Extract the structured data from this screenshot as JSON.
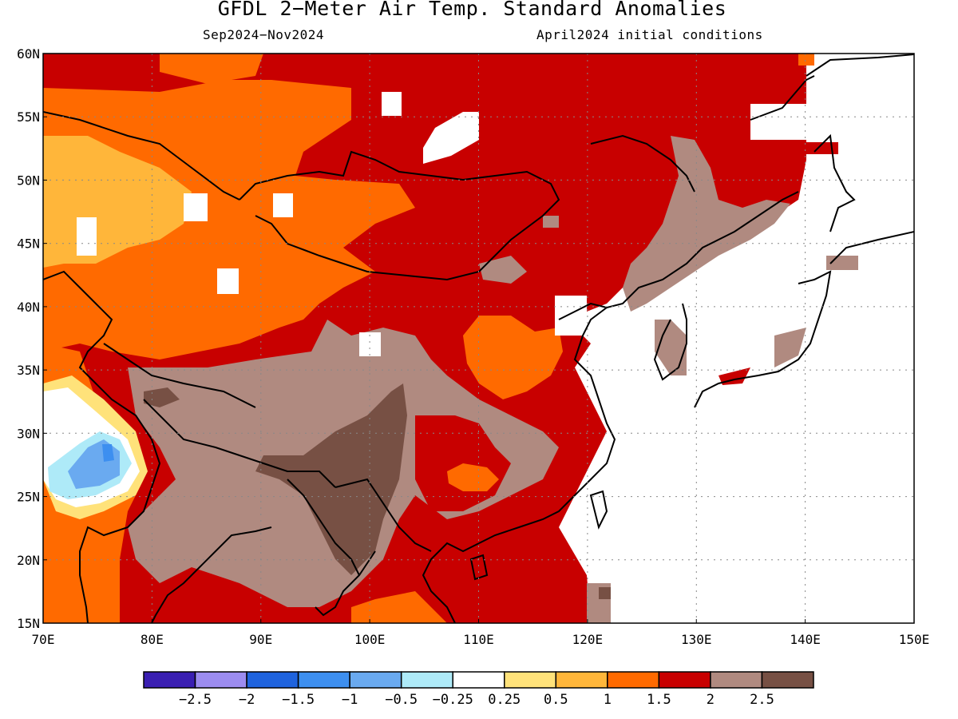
{
  "title": "GFDL 2−Meter Air Temp. Standard Anomalies",
  "subtitle_left": "Sep2024−Nov2024",
  "subtitle_right": "April2024 initial conditions",
  "map": {
    "lon_range": [
      70,
      150
    ],
    "lat_range": [
      15,
      60
    ],
    "lon_ticks": [
      "70E",
      "80E",
      "90E",
      "100E",
      "110E",
      "120E",
      "130E",
      "140E",
      "150E"
    ],
    "lat_ticks": [
      "60N",
      "55N",
      "50N",
      "45N",
      "40N",
      "35N",
      "30N",
      "25N",
      "20N",
      "15N"
    ],
    "grid": "dotted"
  },
  "colorbar": {
    "colors": [
      "#3a1fb2",
      "#9c8cf0",
      "#1f63de",
      "#3d8ff0",
      "#6aaaf0",
      "#aeeaf8",
      "#ffffff",
      "#ffe27a",
      "#ffb63a",
      "#ff6a00",
      "#c80000",
      "#b08a80",
      "#775044"
    ],
    "labels": [
      "−2.5",
      "−2",
      "−1.5",
      "−1",
      "−0.5",
      "−0.25",
      "0.25",
      "0.5",
      "1",
      "1.5",
      "2",
      "2.5"
    ]
  }
}
